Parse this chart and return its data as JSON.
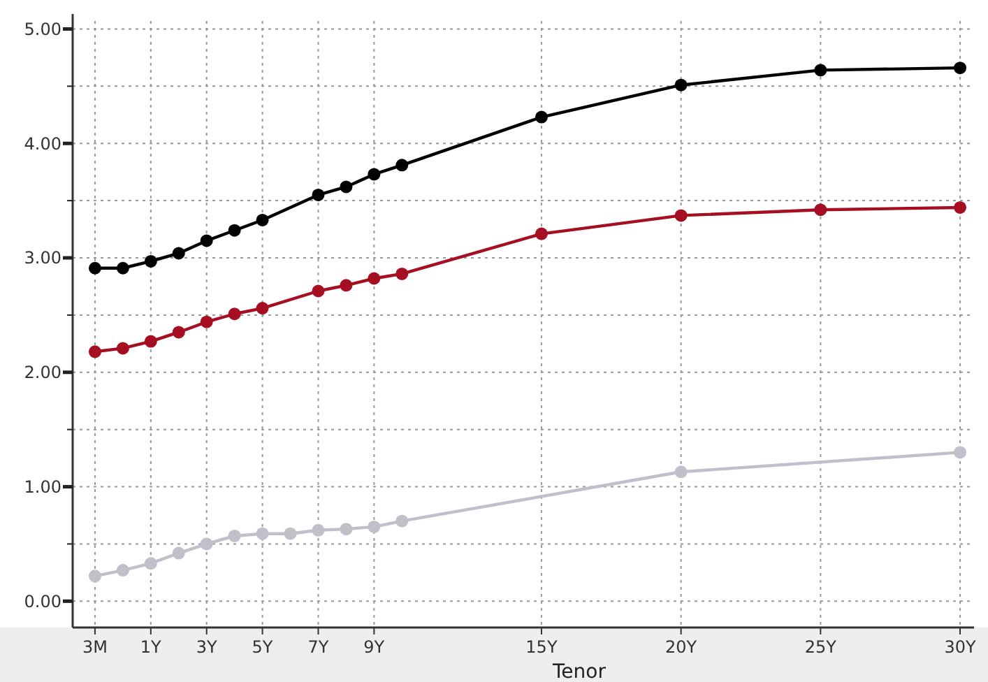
{
  "chart_data": {
    "type": "line",
    "xlabel": "Tenor",
    "categories": [
      "3M",
      null,
      "1Y",
      null,
      "3Y",
      null,
      "5Y",
      null,
      "7Y",
      null,
      "9Y",
      null,
      null,
      null,
      null,
      null,
      "15Y",
      null,
      null,
      null,
      null,
      "20Y",
      null,
      null,
      null,
      null,
      "25Y",
      null,
      null,
      null,
      null,
      "30Y"
    ],
    "series": [
      {
        "color": "#000000",
        "values": [
          2.91,
          2.91,
          2.97,
          3.04,
          3.15,
          3.24,
          3.33,
          null,
          3.55,
          3.62,
          3.73,
          3.81,
          null,
          null,
          null,
          null,
          4.23,
          null,
          null,
          null,
          null,
          4.51,
          null,
          null,
          null,
          null,
          4.64,
          null,
          null,
          null,
          null,
          4.66
        ]
      },
      {
        "color": "#a50f21",
        "values": [
          2.18,
          2.21,
          2.27,
          2.35,
          2.44,
          2.51,
          2.56,
          null,
          2.71,
          2.76,
          2.82,
          2.86,
          null,
          null,
          null,
          null,
          3.21,
          null,
          null,
          null,
          null,
          3.37,
          null,
          null,
          null,
          null,
          3.42,
          null,
          null,
          null,
          null,
          3.44
        ]
      },
      {
        "color": "#c0bfca",
        "values": [
          0.22,
          0.27,
          0.33,
          0.42,
          0.5,
          0.57,
          0.59,
          0.59,
          0.62,
          0.63,
          0.65,
          0.7,
          null,
          null,
          null,
          null,
          null,
          null,
          null,
          null,
          null,
          1.13,
          null,
          null,
          null,
          null,
          null,
          null,
          null,
          null,
          null,
          1.3
        ]
      }
    ],
    "ylim": [
      -0.23,
      5.07
    ],
    "yticks": [
      {
        "value": 0,
        "label": "0.00"
      },
      {
        "value": 0.5,
        "label": null
      },
      {
        "value": 1,
        "label": "1.00"
      },
      {
        "value": 1.5,
        "label": null
      },
      {
        "value": 2,
        "label": "2.00"
      },
      {
        "value": 2.5,
        "label": null
      },
      {
        "value": 3,
        "label": "3.00"
      },
      {
        "value": 3.5,
        "label": null
      },
      {
        "value": 4,
        "label": "4.00"
      },
      {
        "value": 4.5,
        "label": null
      },
      {
        "value": 5,
        "label": "5.00"
      }
    ],
    "grid": true,
    "marker": "circle",
    "line_style": "solid"
  }
}
